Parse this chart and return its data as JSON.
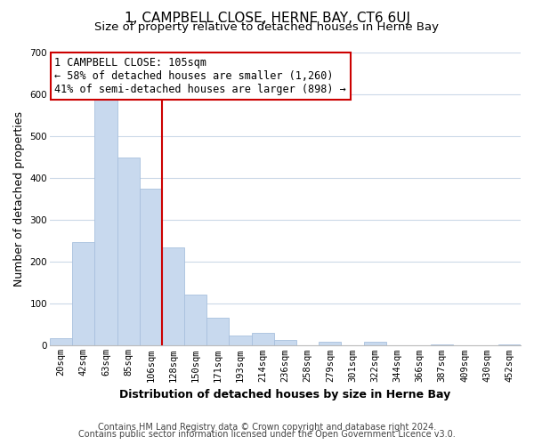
{
  "title": "1, CAMPBELL CLOSE, HERNE BAY, CT6 6UJ",
  "subtitle": "Size of property relative to detached houses in Herne Bay",
  "xlabel": "Distribution of detached houses by size in Herne Bay",
  "ylabel": "Number of detached properties",
  "bar_labels": [
    "20sqm",
    "42sqm",
    "63sqm",
    "85sqm",
    "106sqm",
    "128sqm",
    "150sqm",
    "171sqm",
    "193sqm",
    "214sqm",
    "236sqm",
    "258sqm",
    "279sqm",
    "301sqm",
    "322sqm",
    "344sqm",
    "366sqm",
    "387sqm",
    "409sqm",
    "430sqm",
    "452sqm"
  ],
  "bar_values": [
    18,
    248,
    590,
    450,
    375,
    235,
    122,
    67,
    25,
    31,
    14,
    0,
    10,
    0,
    9,
    0,
    0,
    3,
    0,
    0,
    2
  ],
  "bar_color": "#c8d9ee",
  "bar_edge_color": "#a8c0de",
  "vline_x_index": 4,
  "vline_color": "#cc0000",
  "annotation_line1": "1 CAMPBELL CLOSE: 105sqm",
  "annotation_line2": "← 58% of detached houses are smaller (1,260)",
  "annotation_line3": "41% of semi-detached houses are larger (898) →",
  "ylim": [
    0,
    700
  ],
  "yticks": [
    0,
    100,
    200,
    300,
    400,
    500,
    600,
    700
  ],
  "footer_line1": "Contains HM Land Registry data © Crown copyright and database right 2024.",
  "footer_line2": "Contains public sector information licensed under the Open Government Licence v3.0.",
  "background_color": "#ffffff",
  "grid_color": "#ccd9e8",
  "title_fontsize": 11,
  "subtitle_fontsize": 9.5,
  "axis_label_fontsize": 9,
  "tick_fontsize": 7.5,
  "annotation_fontsize": 8.5,
  "footer_fontsize": 7
}
